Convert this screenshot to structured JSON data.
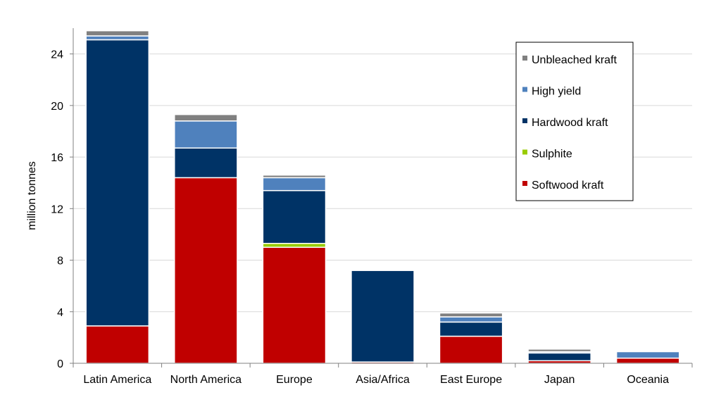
{
  "chart_data": {
    "type": "bar",
    "stacked": true,
    "title": "",
    "xlabel": "",
    "ylabel": "million tonnes",
    "ylim": [
      0,
      26
    ],
    "yticks": [
      0,
      4,
      8,
      12,
      16,
      20,
      24
    ],
    "grid": "horizontal",
    "legend_position": "top-right",
    "categories": [
      "Latin America",
      "North America",
      "Europe",
      "Asia/Africa",
      "East Europe",
      "Japan",
      "Oceania"
    ],
    "series": [
      {
        "name": "Softwood kraft",
        "color": "#c00000",
        "values": [
          2.9,
          14.4,
          9.0,
          0.1,
          2.1,
          0.2,
          0.4
        ]
      },
      {
        "name": "Sulphite",
        "color": "#99cc00",
        "values": [
          0.0,
          0.0,
          0.3,
          0.0,
          0.0,
          0.0,
          0.0
        ]
      },
      {
        "name": "Hardwood kraft",
        "color": "#003366",
        "values": [
          22.2,
          2.3,
          4.1,
          7.1,
          1.1,
          0.6,
          0.0
        ]
      },
      {
        "name": "High yield",
        "color": "#4f81bd",
        "values": [
          0.3,
          2.1,
          1.0,
          0.0,
          0.4,
          0.1,
          0.5
        ]
      },
      {
        "name": "Unbleached kraft",
        "color": "#808080",
        "values": [
          0.4,
          0.5,
          0.2,
          0.0,
          0.3,
          0.2,
          0.0
        ]
      }
    ]
  }
}
